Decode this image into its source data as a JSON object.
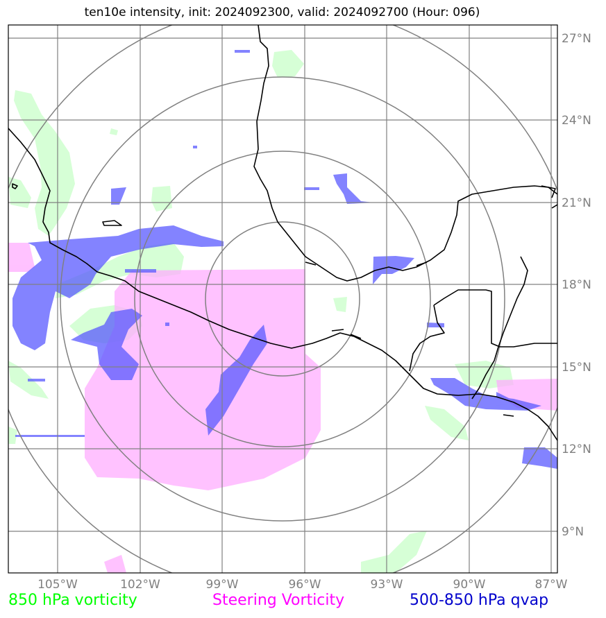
{
  "title": "ten10e intensity, init: 2024092300, valid: 2024092700 (Hour: 096)",
  "lat_labels": [
    "27°N",
    "24°N",
    "21°N",
    "18°N",
    "15°N",
    "12°N",
    "9°N"
  ],
  "lon_labels": [
    "105°W",
    "102°W",
    "99°W",
    "96°W",
    "93°W",
    "90°W",
    "87°W"
  ],
  "legend": {
    "vort850": "850 hPa vorticity",
    "steering": "Steering Vorticity",
    "qvap": "500-850 hPa qvap"
  },
  "colors": {
    "vort850": "#00ff00",
    "steering": "#ff00ff",
    "qvap": "#0000cc",
    "grid": "#808080",
    "coast": "#000000"
  }
}
